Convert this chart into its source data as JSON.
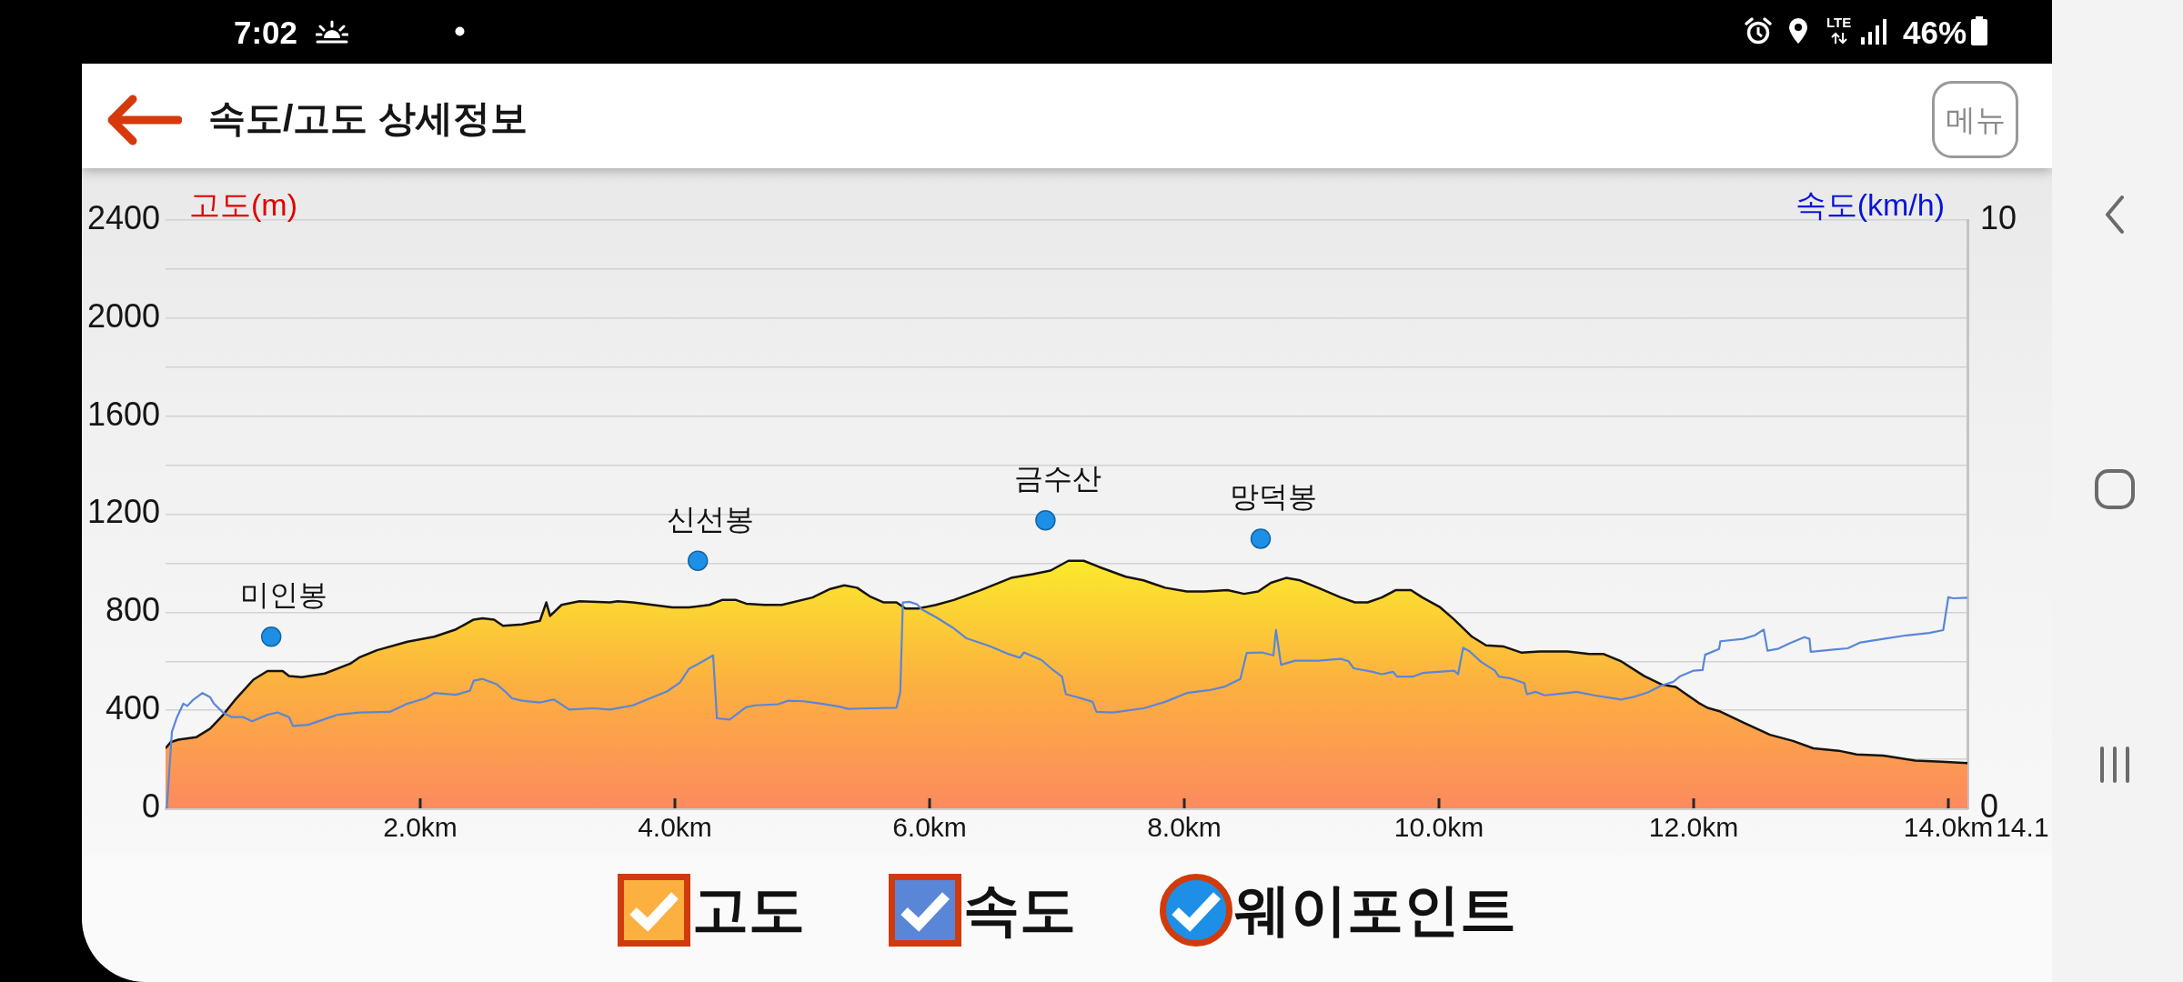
{
  "chart_data": {
    "type": "area",
    "title": "속도/고도 상세정보",
    "ylabel": "고도(m)",
    "y2label": "속도(km/h)",
    "xlim": [
      0,
      14.15
    ],
    "xticks": [
      {
        "value": 2,
        "label": "2.0km"
      },
      {
        "value": 4,
        "label": "4.0km"
      },
      {
        "value": 6,
        "label": "6.0km"
      },
      {
        "value": 8,
        "label": "8.0km"
      },
      {
        "value": 10,
        "label": "10.0km"
      },
      {
        "value": 12,
        "label": "12.0km"
      },
      {
        "value": 14,
        "label": "14.0km"
      }
    ],
    "ylim": [
      0,
      2400
    ],
    "yticks": [
      0,
      {
        "value": 200,
        "label": null
      },
      400,
      {
        "value": 600,
        "label": null
      },
      800,
      {
        "value": 1000,
        "label": null
      },
      1200,
      {
        "value": 1400,
        "label": null
      },
      1600,
      {
        "value": 1800,
        "label": null
      },
      2000,
      {
        "value": 2200,
        "label": null
      },
      2400
    ],
    "y2lim": [
      0,
      10
    ],
    "y2ticks": [
      0,
      10
    ],
    "grid": "y",
    "legend": "bottom",
    "series": [
      {
        "name": "고도",
        "type": "area",
        "color": "#fcb040",
        "x": [
          0,
          0.04,
          0.1,
          0.24,
          0.35,
          0.45,
          0.55,
          0.69,
          0.8,
          0.92,
          0.97,
          1.07,
          1.25,
          1.45,
          1.52,
          1.66,
          1.9,
          2.11,
          2.28,
          2.42,
          2.49,
          2.58,
          2.65,
          2.8,
          2.94,
          2.99,
          3.02,
          3.11,
          3.25,
          3.49,
          3.55,
          3.67,
          3.98,
          4.11,
          4.27,
          4.37,
          4.48,
          4.56,
          4.7,
          4.84,
          5.08,
          5.22,
          5.33,
          5.43,
          5.53,
          5.64,
          5.74,
          5.81,
          5.91,
          6.05,
          6.19,
          6.4,
          6.64,
          6.81,
          6.95,
          7.09,
          7.21,
          7.33,
          7.54,
          7.68,
          7.85,
          8.02,
          8.16,
          8.34,
          8.47,
          8.58,
          8.68,
          8.8,
          8.91,
          9.05,
          9.23,
          9.34,
          9.44,
          9.55,
          9.66,
          9.78,
          9.87,
          10.01,
          10.12,
          10.26,
          10.37,
          10.51,
          10.65,
          10.79,
          11.01,
          11.18,
          11.29,
          11.43,
          11.61,
          11.75,
          11.86,
          12.04,
          12.11,
          12.21,
          12.39,
          12.6,
          12.78,
          12.94,
          13.14,
          13.28,
          13.49,
          13.74,
          13.95,
          14.15
        ],
        "values": [
          245,
          270,
          280,
          290,
          325,
          380,
          445,
          525,
          560,
          560,
          540,
          535,
          550,
          590,
          615,
          645,
          680,
          700,
          730,
          770,
          775,
          770,
          745,
          750,
          765,
          840,
          785,
          830,
          845,
          840,
          845,
          840,
          820,
          820,
          830,
          850,
          850,
          835,
          830,
          830,
          860,
          895,
          910,
          900,
          865,
          840,
          840,
          815,
          815,
          830,
          850,
          890,
          940,
          955,
          970,
          1010,
          1010,
          985,
          945,
          930,
          900,
          885,
          885,
          890,
          875,
          885,
          920,
          940,
          930,
          900,
          860,
          840,
          840,
          860,
          890,
          890,
          860,
          820,
          770,
          700,
          665,
          660,
          635,
          640,
          640,
          630,
          630,
          600,
          540,
          505,
          495,
          430,
          410,
          395,
          350,
          300,
          275,
          245,
          235,
          220,
          215,
          195,
          190,
          185
        ]
      },
      {
        "name": "속도",
        "type": "line",
        "axis": "y2",
        "color": "#5a86d8",
        "x": [
          0.01,
          0.05,
          0.09,
          0.14,
          0.17,
          0.22,
          0.29,
          0.35,
          0.38,
          0.45,
          0.52,
          0.61,
          0.68,
          0.8,
          0.88,
          0.97,
          1.0,
          1.12,
          1.35,
          1.52,
          1.76,
          1.9,
          2.04,
          2.11,
          2.28,
          2.39,
          2.42,
          2.49,
          2.6,
          2.68,
          2.72,
          2.8,
          2.94,
          3.05,
          3.1,
          3.17,
          3.36,
          3.49,
          3.67,
          3.84,
          3.94,
          4.04,
          4.11,
          4.22,
          4.3,
          4.33,
          4.43,
          4.56,
          4.63,
          4.81,
          4.89,
          5.01,
          5.15,
          5.29,
          5.36,
          5.53,
          5.74,
          5.77,
          5.79,
          5.84,
          5.9,
          5.94,
          6.05,
          6.19,
          6.29,
          6.47,
          6.61,
          6.71,
          6.74,
          6.88,
          6.97,
          7.04,
          7.07,
          7.16,
          7.28,
          7.31,
          7.44,
          7.68,
          7.85,
          8.02,
          8.2,
          8.32,
          8.44,
          8.49,
          8.61,
          8.7,
          8.72,
          8.76,
          8.87,
          9.05,
          9.23,
          9.29,
          9.33,
          9.48,
          9.55,
          9.64,
          9.67,
          9.8,
          9.87,
          10.12,
          10.15,
          10.19,
          10.24,
          10.33,
          10.44,
          10.47,
          10.56,
          10.67,
          10.69,
          10.76,
          10.83,
          11.01,
          11.08,
          11.22,
          11.34,
          11.43,
          11.54,
          11.64,
          11.75,
          11.84,
          11.89,
          12.0,
          12.07,
          12.09,
          12.2,
          12.21,
          12.39,
          12.48,
          12.55,
          12.58,
          12.66,
          12.75,
          12.87,
          12.91,
          12.92,
          13.1,
          13.21,
          13.31,
          13.49,
          13.67,
          13.85,
          13.96,
          14.0,
          14.04,
          14.15
        ],
        "values": [
          0,
          1.3,
          1.55,
          1.78,
          1.74,
          1.85,
          1.96,
          1.89,
          1.78,
          1.63,
          1.55,
          1.55,
          1.48,
          1.59,
          1.63,
          1.55,
          1.4,
          1.42,
          1.59,
          1.63,
          1.64,
          1.78,
          1.87,
          1.96,
          1.93,
          2.0,
          2.17,
          2.2,
          2.11,
          1.96,
          1.87,
          1.83,
          1.8,
          1.85,
          1.78,
          1.68,
          1.7,
          1.68,
          1.75,
          1.9,
          1.99,
          2.14,
          2.37,
          2.5,
          2.6,
          1.53,
          1.51,
          1.72,
          1.75,
          1.77,
          1.83,
          1.82,
          1.78,
          1.73,
          1.69,
          1.7,
          1.71,
          1.98,
          3.5,
          3.51,
          3.47,
          3.38,
          3.25,
          3.06,
          2.89,
          2.76,
          2.63,
          2.56,
          2.65,
          2.52,
          2.35,
          2.24,
          1.94,
          1.89,
          1.81,
          1.64,
          1.63,
          1.7,
          1.81,
          1.96,
          2.01,
          2.07,
          2.2,
          2.64,
          2.65,
          2.6,
          3.03,
          2.44,
          2.51,
          2.51,
          2.54,
          2.5,
          2.38,
          2.32,
          2.28,
          2.32,
          2.24,
          2.24,
          2.3,
          2.34,
          2.28,
          2.73,
          2.67,
          2.49,
          2.34,
          2.24,
          2.21,
          2.13,
          1.94,
          1.98,
          1.92,
          1.96,
          1.98,
          1.92,
          1.88,
          1.85,
          1.9,
          1.97,
          2.09,
          2.15,
          2.24,
          2.34,
          2.35,
          2.61,
          2.71,
          2.84,
          2.88,
          2.94,
          3.04,
          2.68,
          2.71,
          2.8,
          2.91,
          2.88,
          2.66,
          2.7,
          2.72,
          2.82,
          2.88,
          2.94,
          2.98,
          3.03,
          3.59,
          3.57,
          3.58
        ]
      },
      {
        "name": "웨이포인트",
        "type": "scatter",
        "marker": "circle",
        "color": "#1e8fe6",
        "x": [
          0.83,
          4.18,
          6.91,
          8.6
        ],
        "values": [
          700,
          1010,
          1175,
          1100
        ]
      }
    ],
    "annotations": [
      {
        "text": "미인봉",
        "x": 0.83,
        "y": 700
      },
      {
        "text": "신선봉",
        "x": 4.18,
        "y": 1010
      },
      {
        "text": "금수산",
        "x": 6.91,
        "y": 1175
      },
      {
        "text": "망덕봉",
        "x": 8.6,
        "y": 1100
      },
      "14.1",
      "메뉴",
      "7:02",
      "LTE",
      "46%"
    ]
  }
}
